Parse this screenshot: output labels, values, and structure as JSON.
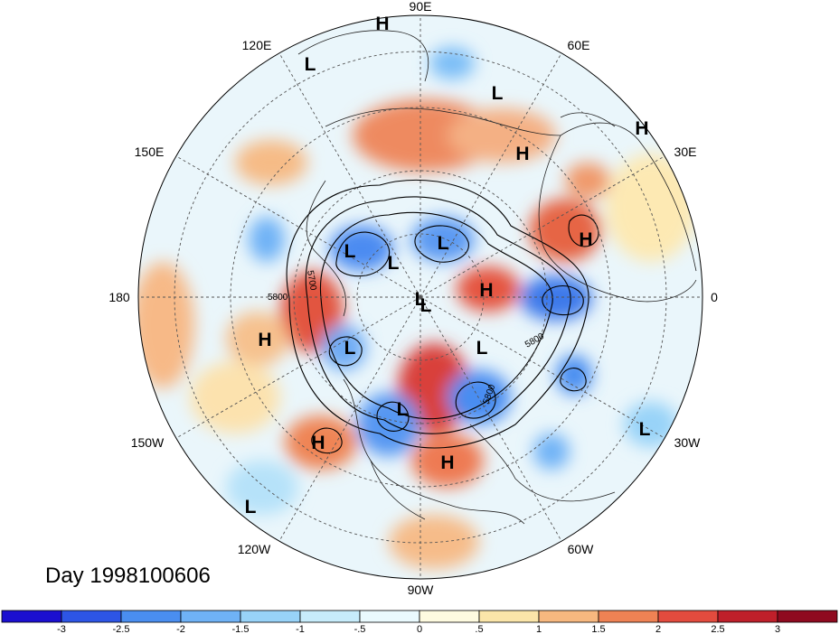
{
  "title": "Day 1998100606",
  "longitude_labels": [
    "90E",
    "60E",
    "30E",
    "0",
    "30W",
    "60W",
    "90W",
    "120W",
    "150W",
    "180",
    "150E",
    "120E"
  ],
  "contour_labels": [
    "5700",
    "5800",
    "5800",
    "5800"
  ],
  "pressure_centers": [
    "L",
    "L",
    "H",
    "H",
    "H",
    "L",
    "L",
    "L",
    "L",
    "H",
    "L",
    "H",
    "L",
    "L",
    "L",
    "L",
    "H",
    "H",
    "L",
    "H"
  ],
  "colorbar": {
    "tick_labels": [
      "-3",
      "-2.5",
      "-2",
      "-1.5",
      "-1",
      "-.5",
      "0",
      ".5",
      "1",
      "1.5",
      "2",
      "2.5",
      "3"
    ],
    "colors": [
      "#1b0fd0",
      "#2d55e6",
      "#4a8ef0",
      "#6fb2f6",
      "#98d3f8",
      "#c7ecfb",
      "#eafafe",
      "#fefbe0",
      "#fbe5a9",
      "#f7b87f",
      "#ef8254",
      "#e34b3e",
      "#bf1f2a",
      "#8f0a1f"
    ]
  }
}
